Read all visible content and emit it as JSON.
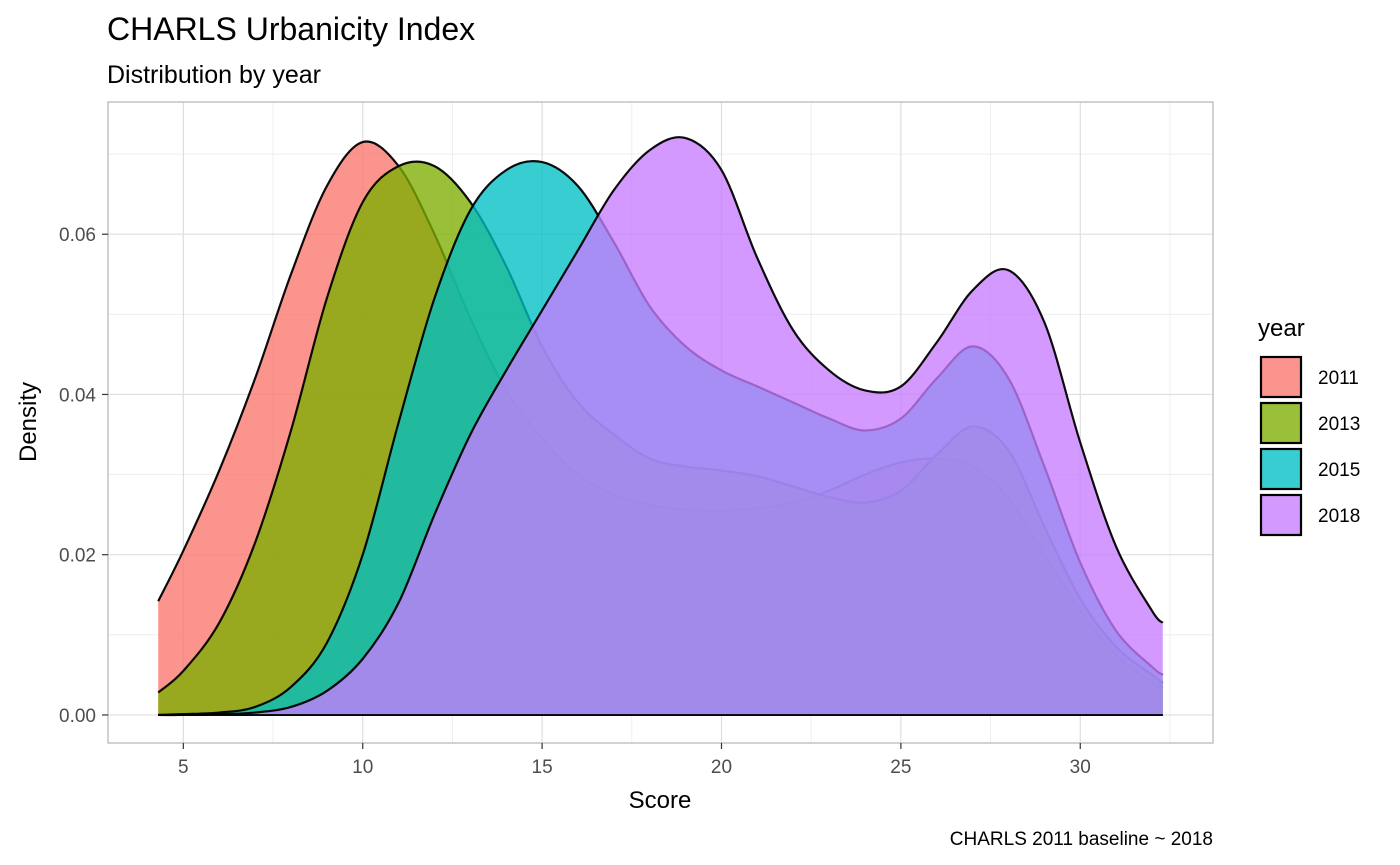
{
  "chart_data": {
    "type": "area",
    "title": "CHARLS Urbanicity Index",
    "subtitle": "Distribution by year",
    "xlabel": "Score",
    "ylabel": "Density",
    "caption": "CHARLS 2011 baseline ~ 2018",
    "xlim": [
      2.9,
      33.7
    ],
    "ylim": [
      -0.0035,
      0.0765
    ],
    "x_ticks": [
      5,
      10,
      15,
      20,
      25,
      30
    ],
    "x_tick_labels": [
      "5",
      "10",
      "15",
      "20",
      "25",
      "30"
    ],
    "y_ticks": [
      0.0,
      0.02,
      0.04,
      0.06
    ],
    "y_tick_labels": [
      "0.00",
      "0.02",
      "0.04",
      "0.06"
    ],
    "grid": true,
    "legend": {
      "title": "year",
      "position": "right"
    },
    "series": [
      {
        "name": "2011",
        "color": "#F8766D",
        "x": [
          4.3,
          5,
          6,
          7,
          8,
          9,
          10,
          11,
          12,
          13,
          14,
          15,
          16,
          17,
          18,
          19,
          20,
          21,
          22,
          23,
          24,
          25,
          26,
          27,
          28,
          29,
          30,
          31,
          32,
          32.3
        ],
        "y": [
          0.0142,
          0.0205,
          0.0305,
          0.042,
          0.055,
          0.066,
          0.0715,
          0.0685,
          0.06,
          0.0495,
          0.0405,
          0.0345,
          0.03,
          0.0275,
          0.0262,
          0.0256,
          0.0255,
          0.0258,
          0.0265,
          0.028,
          0.03,
          0.0315,
          0.032,
          0.031,
          0.027,
          0.02,
          0.013,
          0.0075,
          0.004,
          0.0034
        ]
      },
      {
        "name": "2013",
        "color": "#7CAE00",
        "x": [
          4.3,
          5,
          6,
          7,
          8,
          9,
          10,
          11,
          12,
          13,
          14,
          15,
          16,
          17,
          18,
          19,
          20,
          21,
          22,
          23,
          24,
          25,
          26,
          27,
          28,
          29,
          30,
          31,
          32,
          32.3
        ],
        "y": [
          0.0028,
          0.0055,
          0.0115,
          0.0215,
          0.0355,
          0.052,
          0.064,
          0.0685,
          0.0685,
          0.064,
          0.056,
          0.046,
          0.039,
          0.035,
          0.032,
          0.031,
          0.0305,
          0.0298,
          0.0285,
          0.0272,
          0.0265,
          0.028,
          0.0325,
          0.036,
          0.033,
          0.0235,
          0.0145,
          0.0085,
          0.005,
          0.004
        ]
      },
      {
        "name": "2015",
        "color": "#00BFC4",
        "x": [
          4.3,
          5,
          6,
          7,
          8,
          9,
          10,
          11,
          12,
          13,
          14,
          15,
          16,
          17,
          18,
          19,
          20,
          21,
          22,
          23,
          24,
          25,
          26,
          27,
          28,
          29,
          30,
          31,
          32,
          32.3
        ],
        "y": [
          0.0,
          0.0001,
          0.0003,
          0.001,
          0.0035,
          0.009,
          0.02,
          0.0365,
          0.052,
          0.063,
          0.068,
          0.069,
          0.066,
          0.059,
          0.051,
          0.046,
          0.043,
          0.041,
          0.039,
          0.037,
          0.0355,
          0.037,
          0.042,
          0.046,
          0.042,
          0.031,
          0.019,
          0.0105,
          0.006,
          0.005
        ]
      },
      {
        "name": "2018",
        "color": "#C77CFF",
        "x": [
          4.3,
          5,
          6,
          7,
          8,
          9,
          10,
          11,
          12,
          13,
          14,
          15,
          16,
          17,
          18,
          19,
          20,
          21,
          22,
          23,
          24,
          25,
          26,
          27,
          28,
          29,
          30,
          31,
          32,
          32.3
        ],
        "y": [
          0.0,
          0.0,
          0.0001,
          0.0003,
          0.001,
          0.003,
          0.007,
          0.014,
          0.025,
          0.035,
          0.043,
          0.0505,
          0.058,
          0.0655,
          0.0705,
          0.072,
          0.068,
          0.057,
          0.048,
          0.043,
          0.0405,
          0.041,
          0.0465,
          0.053,
          0.0555,
          0.049,
          0.034,
          0.021,
          0.013,
          0.0115
        ]
      }
    ]
  }
}
